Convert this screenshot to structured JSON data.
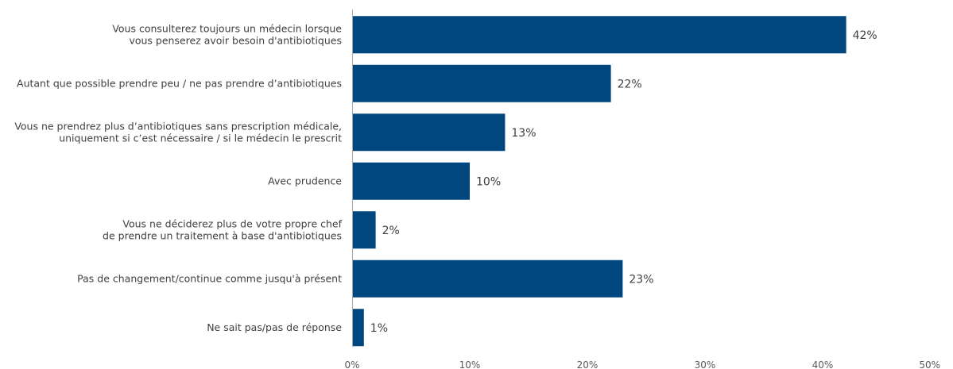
{
  "chart_data": {
    "type": "bar",
    "orientation": "horizontal",
    "categories": [
      [
        "Vous consulterez toujours un médecin lorsque",
        "vous penserez avoir besoin d'antibiotiques"
      ],
      [
        "Autant que possible prendre peu / ne pas prendre d’antibiotiques"
      ],
      [
        "Vous ne prendrez plus d’antibiotiques sans prescription médicale,",
        "uniquement si c’est nécessaire / si le médecin le prescrit"
      ],
      [
        "Avec prudence"
      ],
      [
        "Vous ne déciderez plus de votre propre chef",
        "de prendre un traitement à base d'antibiotiques"
      ],
      [
        "Pas de changement/continue comme jusqu'à présent"
      ],
      [
        "Ne sait pas/pas de réponse"
      ]
    ],
    "values": [
      42,
      22,
      13,
      10,
      2,
      23,
      1
    ],
    "value_labels": [
      "42%",
      "22%",
      "13%",
      "10%",
      "2%",
      "23%",
      "1%"
    ],
    "xlim": [
      0,
      50
    ],
    "ticks": [
      0,
      10,
      20,
      30,
      40,
      50
    ],
    "tick_labels": [
      "0%",
      "10%",
      "20%",
      "30%",
      "40%",
      "50%"
    ],
    "bar_color": "#00467f",
    "grid": false,
    "legend": "none"
  }
}
